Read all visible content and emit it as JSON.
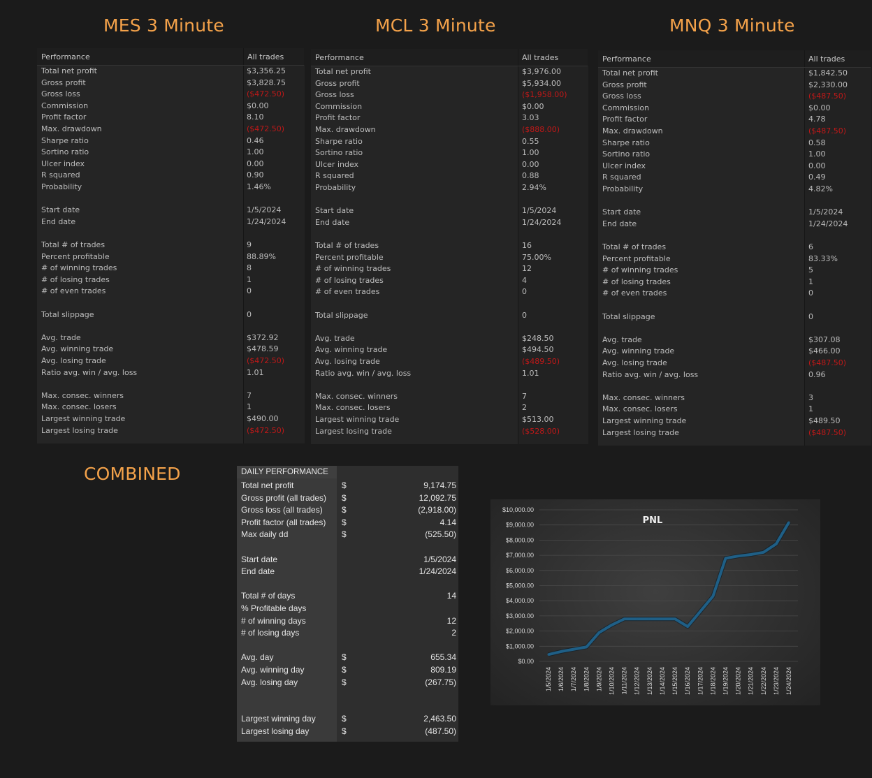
{
  "panels": [
    {
      "title": "MES 3 Minute",
      "header_label": "Performance",
      "header_value": "All trades",
      "rows": [
        {
          "label": "Total net profit",
          "value": "$3,356.25",
          "neg": false
        },
        {
          "label": "Gross profit",
          "value": "$3,828.75",
          "neg": false
        },
        {
          "label": "Gross loss",
          "value": "($472.50)",
          "neg": true
        },
        {
          "label": "Commission",
          "value": "$0.00",
          "neg": false
        },
        {
          "label": "Profit factor",
          "value": "8.10",
          "neg": false
        },
        {
          "label": "Max. drawdown",
          "value": "($472.50)",
          "neg": true
        },
        {
          "label": "Sharpe ratio",
          "value": "0.46",
          "neg": false
        },
        {
          "label": "Sortino ratio",
          "value": "1.00",
          "neg": false
        },
        {
          "label": "Ulcer index",
          "value": "0.00",
          "neg": false
        },
        {
          "label": "R squared",
          "value": "0.90",
          "neg": false
        },
        {
          "label": "Probability",
          "value": "1.46%",
          "neg": false
        },
        {
          "label": "",
          "value": "",
          "neg": false
        },
        {
          "label": "Start date",
          "value": "1/5/2024",
          "neg": false
        },
        {
          "label": "End date",
          "value": "1/24/2024",
          "neg": false
        },
        {
          "label": "",
          "value": "",
          "neg": false
        },
        {
          "label": "Total # of trades",
          "value": "9",
          "neg": false
        },
        {
          "label": "Percent profitable",
          "value": "88.89%",
          "neg": false
        },
        {
          "label": "# of winning trades",
          "value": "8",
          "neg": false
        },
        {
          "label": "# of losing trades",
          "value": "1",
          "neg": false
        },
        {
          "label": "# of even trades",
          "value": "0",
          "neg": false
        },
        {
          "label": "",
          "value": "",
          "neg": false
        },
        {
          "label": "Total slippage",
          "value": "0",
          "neg": false
        },
        {
          "label": "",
          "value": "",
          "neg": false
        },
        {
          "label": "Avg. trade",
          "value": "$372.92",
          "neg": false
        },
        {
          "label": "Avg. winning trade",
          "value": "$478.59",
          "neg": false
        },
        {
          "label": "Avg. losing trade",
          "value": "($472.50)",
          "neg": true
        },
        {
          "label": "Ratio avg. win / avg. loss",
          "value": "1.01",
          "neg": false
        },
        {
          "label": "",
          "value": "",
          "neg": false
        },
        {
          "label": "Max. consec. winners",
          "value": "7",
          "neg": false
        },
        {
          "label": "Max. consec. losers",
          "value": "1",
          "neg": false
        },
        {
          "label": "Largest winning trade",
          "value": "$490.00",
          "neg": false
        },
        {
          "label": "Largest losing trade",
          "value": "($472.50)",
          "neg": true
        }
      ]
    },
    {
      "title": "MCL 3 Minute",
      "header_label": "Performance",
      "header_value": "All trades",
      "rows": [
        {
          "label": "Total net profit",
          "value": "$3,976.00",
          "neg": false
        },
        {
          "label": "Gross profit",
          "value": "$5,934.00",
          "neg": false
        },
        {
          "label": "Gross loss",
          "value": "($1,958.00)",
          "neg": true
        },
        {
          "label": "Commission",
          "value": "$0.00",
          "neg": false
        },
        {
          "label": "Profit factor",
          "value": "3.03",
          "neg": false
        },
        {
          "label": "Max. drawdown",
          "value": "($888.00)",
          "neg": true
        },
        {
          "label": "Sharpe ratio",
          "value": "0.55",
          "neg": false
        },
        {
          "label": "Sortino ratio",
          "value": "1.00",
          "neg": false
        },
        {
          "label": "Ulcer index",
          "value": "0.00",
          "neg": false
        },
        {
          "label": "R squared",
          "value": "0.88",
          "neg": false
        },
        {
          "label": "Probability",
          "value": "2.94%",
          "neg": false
        },
        {
          "label": "",
          "value": "",
          "neg": false
        },
        {
          "label": "Start date",
          "value": "1/5/2024",
          "neg": false
        },
        {
          "label": "End date",
          "value": "1/24/2024",
          "neg": false
        },
        {
          "label": "",
          "value": "",
          "neg": false
        },
        {
          "label": "Total # of trades",
          "value": "16",
          "neg": false
        },
        {
          "label": "Percent profitable",
          "value": "75.00%",
          "neg": false
        },
        {
          "label": "# of winning trades",
          "value": "12",
          "neg": false
        },
        {
          "label": "# of losing trades",
          "value": "4",
          "neg": false
        },
        {
          "label": "# of even trades",
          "value": "0",
          "neg": false
        },
        {
          "label": "",
          "value": "",
          "neg": false
        },
        {
          "label": "Total slippage",
          "value": "0",
          "neg": false
        },
        {
          "label": "",
          "value": "",
          "neg": false
        },
        {
          "label": "Avg. trade",
          "value": "$248.50",
          "neg": false
        },
        {
          "label": "Avg. winning trade",
          "value": "$494.50",
          "neg": false
        },
        {
          "label": "Avg. losing trade",
          "value": "($489.50)",
          "neg": true
        },
        {
          "label": "Ratio avg. win / avg. loss",
          "value": "1.01",
          "neg": false
        },
        {
          "label": "",
          "value": "",
          "neg": false
        },
        {
          "label": "Max. consec. winners",
          "value": "7",
          "neg": false
        },
        {
          "label": "Max. consec. losers",
          "value": "2",
          "neg": false
        },
        {
          "label": "Largest winning trade",
          "value": "$513.00",
          "neg": false
        },
        {
          "label": "Largest losing trade",
          "value": "($528.00)",
          "neg": true
        }
      ]
    },
    {
      "title": "MNQ 3 Minute",
      "header_label": "Performance",
      "header_value": "All trades",
      "rows": [
        {
          "label": "Total net profit",
          "value": "$1,842.50",
          "neg": false
        },
        {
          "label": "Gross profit",
          "value": "$2,330.00",
          "neg": false
        },
        {
          "label": "Gross loss",
          "value": "($487.50)",
          "neg": true
        },
        {
          "label": "Commission",
          "value": "$0.00",
          "neg": false
        },
        {
          "label": "Profit factor",
          "value": "4.78",
          "neg": false
        },
        {
          "label": "Max. drawdown",
          "value": "($487.50)",
          "neg": true
        },
        {
          "label": "Sharpe ratio",
          "value": "0.58",
          "neg": false
        },
        {
          "label": "Sortino ratio",
          "value": "1.00",
          "neg": false
        },
        {
          "label": "Ulcer index",
          "value": "0.00",
          "neg": false
        },
        {
          "label": "R squared",
          "value": "0.49",
          "neg": false
        },
        {
          "label": "Probability",
          "value": "4.82%",
          "neg": false
        },
        {
          "label": "",
          "value": "",
          "neg": false
        },
        {
          "label": "Start date",
          "value": "1/5/2024",
          "neg": false
        },
        {
          "label": "End date",
          "value": "1/24/2024",
          "neg": false
        },
        {
          "label": "",
          "value": "",
          "neg": false
        },
        {
          "label": "Total # of trades",
          "value": "6",
          "neg": false
        },
        {
          "label": "Percent profitable",
          "value": "83.33%",
          "neg": false
        },
        {
          "label": "# of winning trades",
          "value": "5",
          "neg": false
        },
        {
          "label": "# of losing trades",
          "value": "1",
          "neg": false
        },
        {
          "label": "# of even trades",
          "value": "0",
          "neg": false
        },
        {
          "label": "",
          "value": "",
          "neg": false
        },
        {
          "label": "Total slippage",
          "value": "0",
          "neg": false
        },
        {
          "label": "",
          "value": "",
          "neg": false
        },
        {
          "label": "Avg. trade",
          "value": "$307.08",
          "neg": false
        },
        {
          "label": "Avg. winning trade",
          "value": "$466.00",
          "neg": false
        },
        {
          "label": "Avg. losing trade",
          "value": "($487.50)",
          "neg": true
        },
        {
          "label": "Ratio avg. win / avg. loss",
          "value": "0.96",
          "neg": false
        },
        {
          "label": "",
          "value": "",
          "neg": false
        },
        {
          "label": "Max. consec. winners",
          "value": "3",
          "neg": false
        },
        {
          "label": "Max. consec. losers",
          "value": "1",
          "neg": false
        },
        {
          "label": "Largest winning trade",
          "value": "$489.50",
          "neg": false
        },
        {
          "label": "Largest losing trade",
          "value": "($487.50)",
          "neg": true
        }
      ]
    }
  ],
  "combined": {
    "title": "COMBINED",
    "header": "DAILY PERFORMANCE",
    "rows": [
      {
        "label": "Total net profit",
        "sym": "$",
        "value": "9,174.75"
      },
      {
        "label": "Gross profit (all trades)",
        "sym": "$",
        "value": "12,092.75"
      },
      {
        "label": "Gross loss (all trades)",
        "sym": "$",
        "value": "(2,918.00)"
      },
      {
        "label": "Profit factor  (all trades)",
        "sym": "$",
        "value": "4.14"
      },
      {
        "label": "Max daily dd",
        "sym": "$",
        "value": "(525.50)"
      },
      {
        "label": "",
        "sym": "",
        "value": ""
      },
      {
        "label": "Start date",
        "sym": "",
        "value": "1/5/2024"
      },
      {
        "label": "End date",
        "sym": "",
        "value": "1/24/2024"
      },
      {
        "label": "",
        "sym": "",
        "value": ""
      },
      {
        "label": "Total # of days",
        "sym": "",
        "value": "14"
      },
      {
        "label": "% Profitable days",
        "sym": "",
        "value": ""
      },
      {
        "label": "# of winning days",
        "sym": "",
        "value": "12"
      },
      {
        "label": "# of losing days",
        "sym": "",
        "value": "2"
      },
      {
        "label": "",
        "sym": "",
        "value": ""
      },
      {
        "label": "Avg. day",
        "sym": "$",
        "value": "655.34"
      },
      {
        "label": "Avg. winning day",
        "sym": "$",
        "value": "809.19"
      },
      {
        "label": "Avg. losing day",
        "sym": "$",
        "value": "(267.75)"
      },
      {
        "label": "",
        "sym": "",
        "value": ""
      },
      {
        "label": "",
        "sym": "",
        "value": ""
      },
      {
        "label": "Largest winning day",
        "sym": "$",
        "value": "2,463.50"
      },
      {
        "label": "Largest losing day",
        "sym": "$",
        "value": "(487.50)"
      }
    ]
  },
  "chart_data": {
    "type": "line",
    "title": "PNL",
    "xlabel": "",
    "ylabel": "",
    "ylim": [
      0,
      10000
    ],
    "yticks": [
      "$0.00",
      "$1,000.00",
      "$2,000.00",
      "$3,000.00",
      "$4,000.00",
      "$5,000.00",
      "$6,000.00",
      "$7,000.00",
      "$8,000.00",
      "$9,000.00",
      "$10,000.00"
    ],
    "categories": [
      "1/5/2024",
      "1/6/2024",
      "1/7/2024",
      "1/8/2024",
      "1/9/2024",
      "1/10/2024",
      "1/11/2024",
      "1/12/2024",
      "1/13/2024",
      "1/14/2024",
      "1/15/2024",
      "1/16/2024",
      "1/17/2024",
      "1/18/2024",
      "1/19/2024",
      "1/20/2024",
      "1/21/2024",
      "1/22/2024",
      "1/23/2024",
      "1/24/2024"
    ],
    "series": [
      {
        "name": "",
        "values": [
          450,
          650,
          800,
          950,
          1900,
          2400,
          2800,
          2800,
          2800,
          2800,
          2800,
          2300,
          3300,
          4300,
          6800,
          6950,
          7050,
          7200,
          7750,
          9170
        ]
      }
    ],
    "grid": true,
    "line_color": "#1f5f86"
  }
}
